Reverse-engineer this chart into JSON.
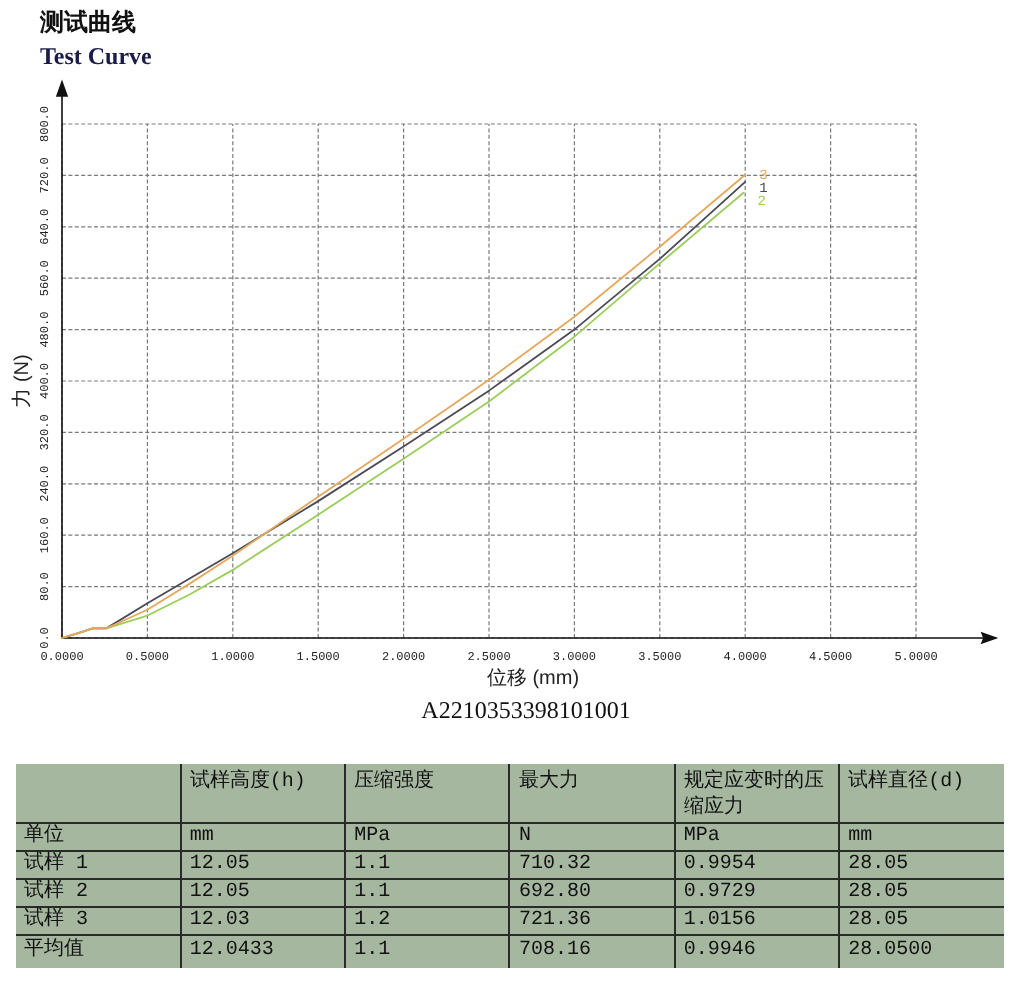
{
  "chart_data": [
    {
      "type": "line",
      "title": "测试曲线",
      "subtitle": "Test Curve",
      "xlabel": "位移 (mm)",
      "ylabel": "力 (N)",
      "annotations": [
        "A2210353398101001"
      ],
      "xlim": [
        0,
        5
      ],
      "ylim": [
        0,
        800
      ],
      "xticks": [
        {
          "value": 0,
          "label": "0.0000"
        },
        {
          "value": 0.5,
          "label": "0.5000"
        },
        {
          "value": 1,
          "label": "1.0000"
        },
        {
          "value": 1.5,
          "label": "1.5000"
        },
        {
          "value": 2,
          "label": "2.0000"
        },
        {
          "value": 2.5,
          "label": "2.5000"
        },
        {
          "value": 3,
          "label": "3.0000"
        },
        {
          "value": 3.5,
          "label": "3.5000"
        },
        {
          "value": 4,
          "label": "4.0000"
        },
        {
          "value": 4.5,
          "label": "4.5000"
        },
        {
          "value": 5,
          "label": "5.0000"
        }
      ],
      "yticks": [
        {
          "value": 0,
          "label": "0.0"
        },
        {
          "value": 80,
          "label": "80.0"
        },
        {
          "value": 160,
          "label": "160.0"
        },
        {
          "value": 240,
          "label": "240.0"
        },
        {
          "value": 320,
          "label": "320.0"
        },
        {
          "value": 400,
          "label": "400.0"
        },
        {
          "value": 480,
          "label": "480.0"
        },
        {
          "value": 560,
          "label": "560.0"
        },
        {
          "value": 640,
          "label": "640.0"
        },
        {
          "value": 720,
          "label": "720.0"
        },
        {
          "value": 800,
          "label": "800.0"
        }
      ],
      "grid": true,
      "series": [
        {
          "name": "1",
          "color": "#4a4a58",
          "x": [
            0,
            0.1,
            0.18,
            0.26,
            0.5,
            1.0,
            1.5,
            2.0,
            2.5,
            3.0,
            3.5,
            4.0
          ],
          "values": [
            0,
            8,
            15,
            15,
            54,
            132,
            213,
            298,
            385,
            480,
            590,
            710
          ]
        },
        {
          "name": "2",
          "color": "#9acd5a",
          "x": [
            0,
            0.1,
            0.18,
            0.26,
            0.5,
            0.75,
            1.0,
            1.5,
            2.0,
            2.5,
            3.0,
            3.5,
            3.99
          ],
          "values": [
            0,
            8,
            15,
            15,
            35,
            68,
            106,
            192,
            279,
            368,
            469,
            583,
            693
          ]
        },
        {
          "name": "3",
          "color": "#e5a85c",
          "x": [
            0,
            0.1,
            0.18,
            0.26,
            0.5,
            0.75,
            1.0,
            1.5,
            2.0,
            2.5,
            3.0,
            3.5,
            4.0
          ],
          "values": [
            0,
            8,
            15,
            15,
            44,
            85,
            128,
            220,
            310,
            402,
            500,
            609,
            721
          ]
        }
      ]
    },
    {
      "type": "other",
      "categories": [
        "试样高度(h)",
        "压缩强度",
        "最大力",
        "规定应变时的压缩应力",
        "试样直径(d)"
      ],
      "y_categories": [
        "单位",
        "试样 1",
        "试样 2",
        "试样 3",
        "平均值"
      ],
      "cell_labels": [
        [
          "mm",
          "MPa",
          "N",
          "MPa",
          "mm"
        ],
        [
          "12.05",
          "1.1",
          "710.32",
          "0.9954",
          "28.05"
        ],
        [
          "12.05",
          "1.1",
          "692.80",
          "0.9729",
          "28.05"
        ],
        [
          "12.03",
          "1.2",
          "721.36",
          "1.0156",
          "28.05"
        ],
        [
          "12.0433",
          "1.1",
          "708.16",
          "0.9946",
          "28.0500"
        ]
      ]
    }
  ]
}
